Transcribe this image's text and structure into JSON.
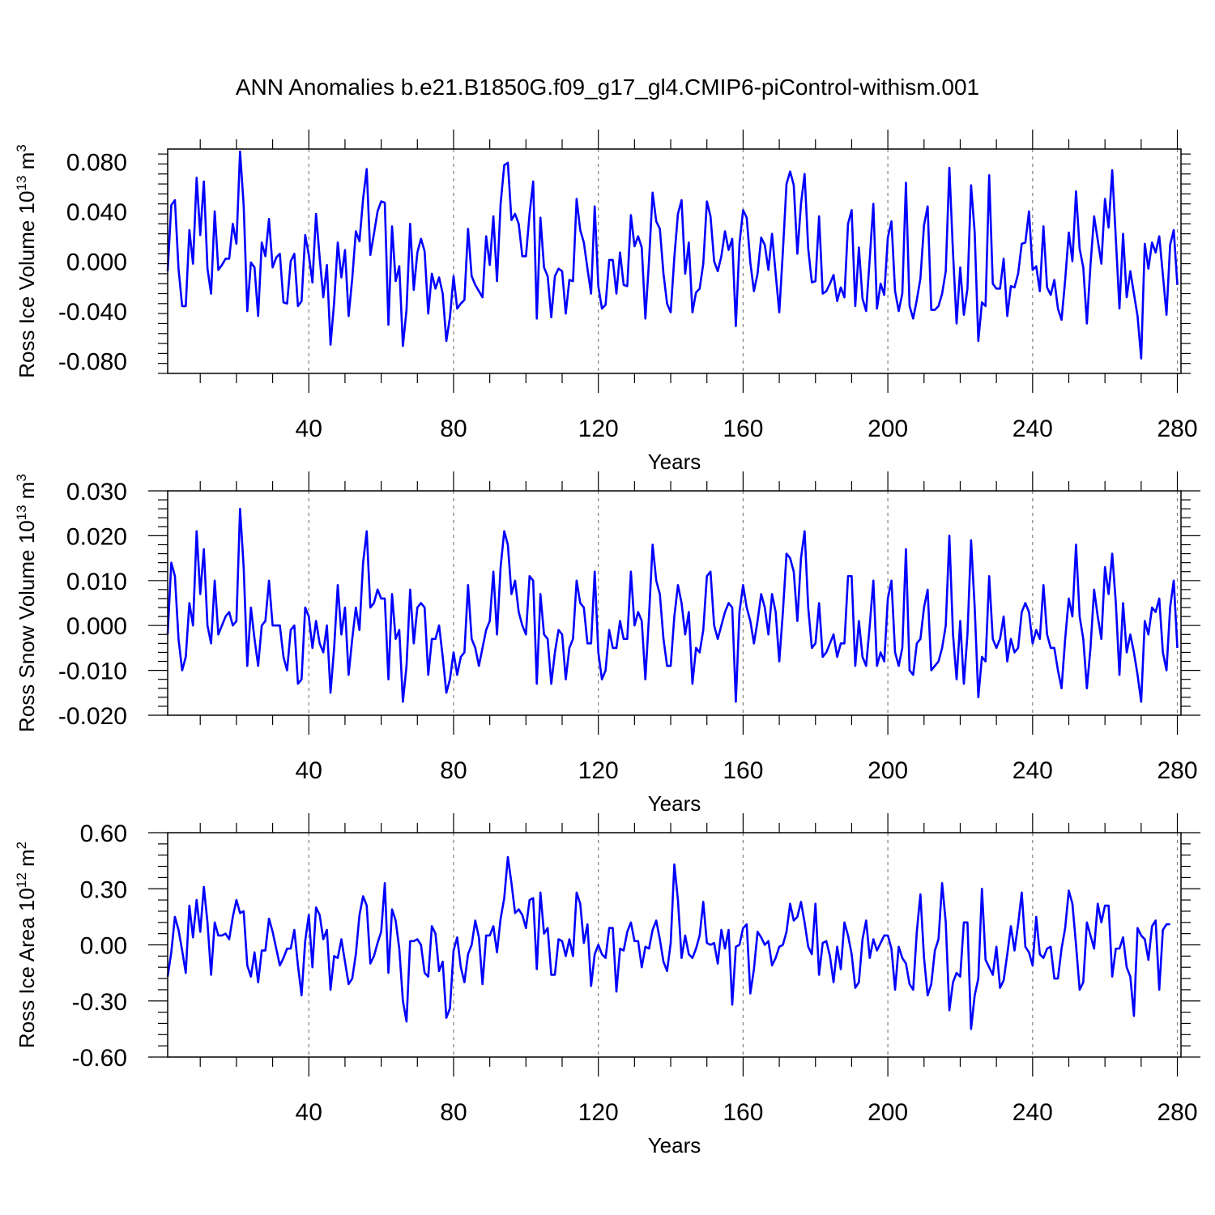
{
  "title": "ANN Anomalies b.e21.B1850G.f09_g17_gl4.CMIP6-piControl-withism.001",
  "colors": {
    "series": "#0000ff",
    "axis": "#000000",
    "refline": "#808080"
  },
  "chart_data": [
    {
      "type": "line",
      "ylabel": {
        "main": "Ross Ice Volume 10",
        "exp": "13",
        "unit": " m",
        "unit_exp": "3"
      },
      "xlabel": "Years",
      "xlim": [
        1,
        281
      ],
      "ylim": [
        -0.09,
        0.09
      ],
      "xticks": [
        40,
        80,
        120,
        160,
        200,
        240,
        280
      ],
      "xtick_labels": [
        "40",
        "80",
        "120",
        "160",
        "200",
        "240",
        "280"
      ],
      "yticks": [
        -0.08,
        -0.04,
        0.0,
        0.04,
        0.08
      ],
      "ytick_labels": [
        "-0.080",
        "-0.040",
        "0.000",
        "0.040",
        "0.080"
      ],
      "grid": "dashed vertical lines at x ticks",
      "series": [
        {
          "values": [
            -0.008,
            0.045,
            0.049,
            -0.006,
            -0.036,
            -0.036,
            0.025,
            -0.002,
            0.067,
            0.021,
            0.064,
            -0.006,
            -0.026,
            0.04,
            -0.007,
            -0.003,
            0.002,
            0.002,
            0.03,
            0.014,
            0.088,
            0.045,
            -0.04,
            -0.001,
            -0.005,
            -0.044,
            0.015,
            0.004,
            0.034,
            -0.005,
            0.003,
            0.006,
            -0.033,
            -0.034,
            0.0,
            0.006,
            -0.036,
            -0.032,
            0.021,
            0.005,
            -0.017,
            0.038,
            0.003,
            -0.029,
            -0.003,
            -0.067,
            -0.033,
            0.015,
            -0.013,
            0.009,
            -0.044,
            -0.014,
            0.024,
            0.016,
            0.05,
            0.074,
            0.005,
            0.022,
            0.04,
            0.048,
            0.047,
            -0.051,
            0.028,
            -0.016,
            -0.004,
            -0.068,
            -0.039,
            0.03,
            -0.023,
            0.007,
            0.018,
            0.008,
            -0.042,
            -0.01,
            -0.022,
            -0.013,
            -0.026,
            -0.064,
            -0.045,
            -0.012,
            -0.038,
            -0.034,
            -0.031,
            0.026,
            -0.012,
            -0.019,
            -0.024,
            -0.029,
            0.02,
            -0.003,
            0.036,
            -0.016,
            0.046,
            0.077,
            0.079,
            0.033,
            0.038,
            0.03,
            0.004,
            0.004,
            0.038,
            0.064,
            -0.046,
            0.035,
            -0.005,
            -0.012,
            -0.045,
            -0.012,
            -0.006,
            -0.008,
            -0.042,
            -0.015,
            -0.016,
            0.05,
            0.025,
            0.015,
            -0.006,
            -0.026,
            0.044,
            -0.02,
            -0.038,
            -0.035,
            0.001,
            0.001,
            -0.026,
            0.007,
            -0.019,
            -0.02,
            0.037,
            0.012,
            0.02,
            0.011,
            -0.046,
            0.0,
            0.055,
            0.032,
            0.026,
            -0.01,
            -0.034,
            -0.041,
            0.003,
            0.038,
            0.049,
            -0.01,
            0.015,
            -0.041,
            -0.025,
            -0.022,
            -0.002,
            0.048,
            0.036,
            0.0,
            -0.008,
            0.004,
            0.024,
            0.009,
            0.018,
            -0.052,
            0.014,
            0.041,
            0.035,
            -0.001,
            -0.024,
            -0.01,
            0.019,
            0.013,
            -0.007,
            0.022,
            -0.01,
            -0.041,
            0.008,
            0.062,
            0.072,
            0.061,
            0.006,
            0.046,
            0.07,
            0.01,
            -0.017,
            -0.016,
            0.036,
            -0.026,
            -0.024,
            -0.018,
            -0.011,
            -0.032,
            -0.021,
            -0.029,
            0.03,
            0.041,
            -0.036,
            0.011,
            -0.03,
            -0.04,
            0.002,
            0.046,
            -0.038,
            -0.018,
            -0.027,
            0.019,
            0.032,
            -0.024,
            -0.04,
            -0.026,
            0.063,
            -0.036,
            -0.046,
            -0.031,
            -0.014,
            0.029,
            0.044,
            -0.039,
            -0.039,
            -0.036,
            -0.026,
            -0.008,
            0.075,
            0.007,
            -0.05,
            -0.005,
            -0.043,
            -0.022,
            0.061,
            0.023,
            -0.064,
            -0.033,
            -0.036,
            0.069,
            -0.018,
            -0.022,
            -0.022,
            0.002,
            -0.044,
            -0.02,
            -0.021,
            -0.01,
            0.014,
            0.015,
            0.04,
            -0.007,
            -0.004,
            -0.024,
            0.028,
            -0.021,
            -0.027,
            -0.015,
            -0.038,
            -0.047,
            -0.015,
            0.023,
            0.0,
            0.056,
            0.01,
            -0.005,
            -0.05,
            -0.003,
            0.036,
            0.017,
            -0.002,
            0.05,
            0.027,
            0.073,
            0.018,
            -0.038,
            0.022,
            -0.029,
            -0.008,
            -0.026,
            -0.044,
            -0.078,
            0.014,
            -0.006,
            0.015,
            0.007,
            0.02,
            -0.011,
            -0.043,
            0.013,
            0.025,
            -0.019
          ]
        }
      ]
    },
    {
      "type": "line",
      "ylabel": {
        "main": "Ross Snow Volume 10",
        "exp": "13",
        "unit": " m",
        "unit_exp": "3"
      },
      "xlabel": "Years",
      "xlim": [
        1,
        281
      ],
      "ylim": [
        -0.02,
        0.03
      ],
      "xticks": [
        40,
        80,
        120,
        160,
        200,
        240,
        280
      ],
      "xtick_labels": [
        "40",
        "80",
        "120",
        "160",
        "200",
        "240",
        "280"
      ],
      "yticks": [
        -0.02,
        -0.01,
        0.0,
        0.01,
        0.02,
        0.03
      ],
      "ytick_labels": [
        "-0.020",
        "-0.010",
        "0.000",
        "0.010",
        "0.020",
        "0.030"
      ],
      "grid": "dashed vertical lines at x ticks",
      "series": [
        {
          "values": [
            -0.002,
            0.014,
            0.011,
            -0.003,
            -0.01,
            -0.007,
            0.005,
            0.0,
            0.021,
            0.007,
            0.017,
            0.0,
            -0.004,
            0.01,
            -0.002,
            0.0,
            0.002,
            0.003,
            0.0,
            0.001,
            0.026,
            0.013,
            -0.009,
            0.004,
            -0.003,
            -0.009,
            0.0,
            0.001,
            0.01,
            0.0,
            0.0,
            0.0,
            -0.007,
            -0.01,
            -0.001,
            0.0,
            -0.013,
            -0.012,
            0.004,
            0.002,
            -0.005,
            0.001,
            -0.004,
            -0.006,
            0.0,
            -0.015,
            -0.005,
            0.009,
            -0.002,
            0.004,
            -0.011,
            -0.003,
            0.004,
            -0.001,
            0.014,
            0.021,
            0.004,
            0.005,
            0.008,
            0.006,
            0.006,
            -0.012,
            0.007,
            -0.003,
            -0.001,
            -0.017,
            -0.009,
            0.008,
            -0.004,
            0.004,
            0.005,
            0.004,
            -0.011,
            -0.003,
            -0.003,
            0.0,
            -0.007,
            -0.015,
            -0.012,
            -0.006,
            -0.011,
            -0.007,
            -0.006,
            0.009,
            -0.003,
            -0.005,
            -0.009,
            -0.005,
            -0.001,
            0.001,
            0.012,
            -0.002,
            0.013,
            0.021,
            0.018,
            0.007,
            0.01,
            0.003,
            0.0,
            -0.002,
            0.011,
            0.01,
            -0.013,
            0.007,
            -0.002,
            -0.003,
            -0.013,
            -0.006,
            -0.001,
            -0.002,
            -0.012,
            -0.005,
            -0.003,
            0.01,
            0.005,
            0.004,
            -0.004,
            -0.004,
            0.012,
            -0.006,
            -0.012,
            -0.01,
            -0.001,
            -0.005,
            -0.005,
            0.001,
            -0.003,
            -0.003,
            0.012,
            0.0,
            0.003,
            0.001,
            -0.012,
            0.002,
            0.018,
            0.01,
            0.007,
            -0.003,
            -0.009,
            -0.009,
            0.002,
            0.009,
            0.005,
            -0.002,
            0.003,
            -0.013,
            -0.005,
            -0.006,
            -0.001,
            0.011,
            0.012,
            0.0,
            -0.003,
            0.0,
            0.003,
            0.005,
            0.004,
            -0.017,
            0.003,
            0.009,
            0.004,
            0.001,
            -0.004,
            0.001,
            0.007,
            0.004,
            -0.002,
            0.007,
            0.003,
            -0.008,
            0.003,
            0.016,
            0.015,
            0.012,
            0.001,
            0.015,
            0.021,
            0.004,
            -0.005,
            -0.004,
            0.005,
            -0.007,
            -0.006,
            -0.004,
            -0.002,
            -0.007,
            -0.004,
            -0.004,
            0.011,
            0.011,
            -0.009,
            0.001,
            -0.007,
            -0.009,
            0.0,
            0.01,
            -0.009,
            -0.006,
            -0.008,
            0.006,
            0.01,
            -0.006,
            -0.009,
            -0.005,
            0.017,
            -0.01,
            -0.011,
            -0.004,
            -0.003,
            0.004,
            0.008,
            -0.01,
            -0.009,
            -0.008,
            -0.005,
            0.0,
            0.02,
            -0.002,
            -0.012,
            0.001,
            -0.013,
            -0.002,
            0.019,
            0.004,
            -0.016,
            -0.007,
            -0.008,
            0.011,
            -0.003,
            -0.005,
            -0.003,
            0.002,
            -0.008,
            -0.003,
            -0.006,
            -0.005,
            0.003,
            0.005,
            0.003,
            -0.004,
            -0.001,
            -0.003,
            0.009,
            -0.002,
            -0.005,
            -0.005,
            -0.01,
            -0.014,
            -0.003,
            0.006,
            0.002,
            0.018,
            0.002,
            -0.003,
            -0.014,
            -0.005,
            0.008,
            0.002,
            -0.003,
            0.013,
            0.007,
            0.016,
            0.005,
            -0.011,
            0.005,
            -0.006,
            -0.002,
            -0.006,
            -0.011,
            -0.017,
            0.001,
            -0.002,
            0.004,
            0.003,
            0.006,
            -0.006,
            -0.01,
            0.004,
            0.01,
            -0.005
          ]
        }
      ]
    },
    {
      "type": "line",
      "ylabel": {
        "main": "Ross Ice Area 10",
        "exp": "12",
        "unit": " m",
        "unit_exp": "2"
      },
      "xlabel": "Years",
      "xlim": [
        1,
        281
      ],
      "ylim": [
        -0.6,
        0.6
      ],
      "xticks": [
        40,
        80,
        120,
        160,
        200,
        240,
        280
      ],
      "xtick_labels": [
        "40",
        "80",
        "120",
        "160",
        "200",
        "240",
        "280"
      ],
      "yticks": [
        -0.6,
        -0.3,
        0.0,
        0.3,
        0.6
      ],
      "ytick_labels": [
        "-0.60",
        "-0.30",
        "0.00",
        "0.30",
        "0.60"
      ],
      "grid": "dashed vertical lines at x ticks",
      "series": [
        {
          "values": [
            -0.17,
            -0.04,
            0.15,
            0.08,
            -0.03,
            -0.15,
            0.21,
            0.04,
            0.24,
            0.07,
            0.31,
            0.12,
            -0.16,
            0.12,
            0.05,
            0.05,
            0.06,
            0.03,
            0.15,
            0.24,
            0.17,
            0.18,
            -0.11,
            -0.17,
            -0.04,
            -0.2,
            -0.03,
            -0.03,
            0.14,
            0.07,
            -0.02,
            -0.11,
            -0.07,
            -0.02,
            -0.02,
            0.08,
            -0.11,
            -0.27,
            0.02,
            0.16,
            -0.12,
            0.2,
            0.16,
            0.03,
            0.08,
            -0.24,
            -0.06,
            -0.07,
            0.03,
            -0.09,
            -0.21,
            -0.18,
            -0.05,
            0.16,
            0.26,
            0.21,
            -0.1,
            -0.06,
            0.01,
            0.07,
            0.33,
            -0.15,
            0.19,
            0.13,
            -0.02,
            -0.3,
            -0.41,
            0.02,
            0.02,
            0.03,
            0.0,
            -0.15,
            -0.17,
            0.1,
            0.06,
            -0.14,
            -0.09,
            -0.39,
            -0.34,
            -0.03,
            0.04,
            -0.12,
            -0.2,
            -0.05,
            0.0,
            0.13,
            0.04,
            -0.21,
            0.05,
            0.05,
            0.1,
            -0.04,
            0.14,
            0.25,
            0.47,
            0.33,
            0.17,
            0.19,
            0.16,
            0.09,
            0.24,
            0.25,
            -0.13,
            0.28,
            0.06,
            0.09,
            -0.16,
            -0.16,
            0.03,
            0.02,
            -0.06,
            0.03,
            -0.06,
            0.28,
            0.22,
            0.01,
            0.11,
            -0.22,
            -0.05,
            0.0,
            -0.05,
            -0.07,
            0.09,
            0.09,
            -0.25,
            -0.02,
            -0.03,
            0.07,
            0.12,
            0.02,
            0.02,
            -0.12,
            -0.01,
            -0.02,
            0.08,
            0.13,
            0.03,
            -0.09,
            -0.14,
            0.01,
            0.43,
            0.24,
            -0.07,
            0.05,
            -0.05,
            -0.07,
            -0.02,
            0.05,
            0.23,
            0.01,
            0.0,
            0.01,
            -0.1,
            0.08,
            -0.02,
            0.08,
            -0.32,
            -0.01,
            0.0,
            0.09,
            0.11,
            -0.26,
            -0.13,
            0.07,
            0.04,
            0.0,
            0.02,
            -0.11,
            -0.07,
            -0.01,
            0.0,
            0.07,
            0.22,
            0.13,
            0.15,
            0.23,
            0.12,
            -0.01,
            -0.05,
            0.22,
            -0.16,
            0.01,
            0.02,
            -0.06,
            -0.2,
            -0.01,
            -0.13,
            0.12,
            0.05,
            -0.05,
            -0.23,
            -0.2,
            0.03,
            0.13,
            -0.07,
            0.03,
            -0.03,
            0.01,
            0.05,
            0.05,
            -0.02,
            -0.24,
            -0.01,
            -0.07,
            -0.1,
            -0.21,
            -0.24,
            0.07,
            0.27,
            -0.07,
            -0.27,
            -0.21,
            -0.03,
            0.03,
            0.33,
            0.12,
            -0.35,
            -0.2,
            -0.15,
            -0.17,
            0.12,
            0.12,
            -0.45,
            -0.27,
            -0.18,
            0.3,
            -0.08,
            -0.12,
            -0.16,
            -0.01,
            -0.23,
            -0.19,
            -0.05,
            0.1,
            -0.03,
            0.11,
            0.28,
            -0.01,
            -0.04,
            -0.11,
            0.15,
            -0.05,
            -0.07,
            -0.02,
            -0.01,
            -0.18,
            -0.18,
            -0.02,
            0.09,
            0.29,
            0.22,
            0.0,
            -0.24,
            -0.2,
            0.12,
            0.05,
            -0.02,
            0.22,
            0.12,
            0.21,
            0.21,
            -0.17,
            -0.02,
            -0.02,
            0.04,
            -0.12,
            -0.17,
            -0.38,
            0.09,
            0.05,
            0.03,
            -0.08,
            0.1,
            0.13,
            -0.24,
            0.08,
            0.11,
            0.11
          ]
        }
      ]
    }
  ]
}
